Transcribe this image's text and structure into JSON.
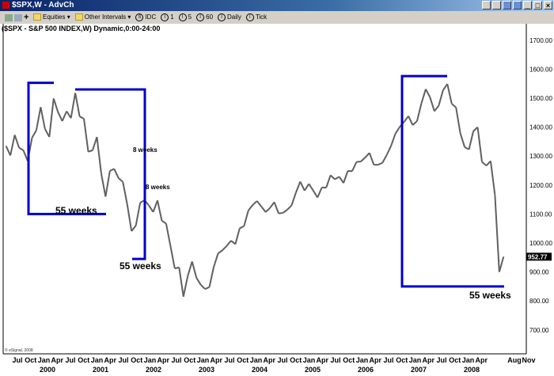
{
  "window": {
    "title": "$SPX,W - AdvCh",
    "controls": [
      "minimize",
      "maximize",
      "close"
    ]
  },
  "toolbar": {
    "equities_label": "Equities",
    "other_intervals_label": "Other Intervals",
    "intervals": [
      {
        "badge": "S",
        "label": "IDC"
      },
      {
        "badge": "I",
        "label": "1"
      },
      {
        "badge": "I",
        "label": "5"
      },
      {
        "badge": "I",
        "label": "60"
      },
      {
        "badge": "I",
        "label": "Daily"
      },
      {
        "badge": "I",
        "label": "Tick"
      }
    ]
  },
  "chart_data": {
    "type": "line",
    "title": "($SPX - S&P 500 INDEX,W) Dynamic,0:00-24:00",
    "xlabel": "",
    "ylabel": "",
    "ylim": [
      650,
      1750
    ],
    "yticks": [
      "700.00",
      "800.00",
      "900.00",
      "1000.00",
      "1100.00",
      "1200.00",
      "1300.00",
      "1400.00",
      "1500.00",
      "1600.00",
      "1700.00"
    ],
    "ytick_values": [
      700,
      800,
      900,
      1000,
      1100,
      1200,
      1300,
      1400,
      1500,
      1600,
      1700
    ],
    "last_price": "952.77",
    "grid": false,
    "xtick_labels": [
      "Jul",
      "Oct",
      "Jan",
      "Apr",
      "Jul",
      "Oct",
      "Jan",
      "Apr",
      "Jul",
      "Oct",
      "Jan",
      "Apr",
      "Jul",
      "Oct",
      "Jan",
      "Apr",
      "Jul",
      "Oct",
      "Jan",
      "Apr",
      "Jul",
      "Oct",
      "Jan",
      "Apr",
      "Jul",
      "Oct",
      "Jan",
      "Apr",
      "Jul",
      "Oct",
      "Jan",
      "Apr",
      "Jul",
      "Oct",
      "Jan",
      "Apr",
      "Aug",
      "Nov"
    ],
    "year_labels": [
      "2000",
      "2001",
      "2002",
      "2003",
      "2004",
      "2005",
      "2006",
      "2007",
      "2008"
    ],
    "series": [
      {
        "x": [
          "1999-04",
          "1999-05",
          "1999-06",
          "1999-07",
          "1999-08",
          "1999-09",
          "1999-10",
          "1999-11",
          "1999-12",
          "2000-01",
          "2000-02",
          "2000-03",
          "2000-04",
          "2000-05",
          "2000-06",
          "2000-07",
          "2000-08",
          "2000-09",
          "2000-10",
          "2000-11",
          "2000-12",
          "2001-01",
          "2001-02",
          "2001-03",
          "2001-04",
          "2001-05",
          "2001-06",
          "2001-07",
          "2001-08",
          "2001-09",
          "2001-10",
          "2001-11",
          "2001-12",
          "2002-01",
          "2002-02",
          "2002-03",
          "2002-04",
          "2002-05",
          "2002-06",
          "2002-07",
          "2002-08",
          "2002-09",
          "2002-10",
          "2002-11",
          "2002-12",
          "2003-01",
          "2003-02",
          "2003-03",
          "2003-04",
          "2003-05",
          "2003-06",
          "2003-07",
          "2003-08",
          "2003-09",
          "2003-10",
          "2003-11",
          "2003-12",
          "2004-01",
          "2004-02",
          "2004-03",
          "2004-04",
          "2004-05",
          "2004-06",
          "2004-07",
          "2004-08",
          "2004-09",
          "2004-10",
          "2004-11",
          "2004-12",
          "2005-01",
          "2005-02",
          "2005-03",
          "2005-04",
          "2005-05",
          "2005-06",
          "2005-07",
          "2005-08",
          "2005-09",
          "2005-10",
          "2005-11",
          "2005-12",
          "2006-01",
          "2006-02",
          "2006-03",
          "2006-04",
          "2006-05",
          "2006-06",
          "2006-07",
          "2006-08",
          "2006-09",
          "2006-10",
          "2006-11",
          "2006-12",
          "2007-01",
          "2007-02",
          "2007-03",
          "2007-04",
          "2007-05",
          "2007-06",
          "2007-07",
          "2007-08",
          "2007-09",
          "2007-10",
          "2007-11",
          "2007-12",
          "2008-01",
          "2008-02",
          "2008-03",
          "2008-04",
          "2008-05",
          "2008-06",
          "2008-07",
          "2008-08",
          "2008-09",
          "2008-10",
          "2008-11"
        ],
        "close": [
          1335,
          1302,
          1373,
          1329,
          1320,
          1283,
          1363,
          1389,
          1469,
          1394,
          1366,
          1499,
          1452,
          1421,
          1455,
          1431,
          1518,
          1437,
          1429,
          1315,
          1320,
          1366,
          1240,
          1160,
          1249,
          1256,
          1224,
          1211,
          1134,
          1041,
          1060,
          1139,
          1148,
          1130,
          1107,
          1147,
          1077,
          1067,
          990,
          912,
          916,
          815,
          886,
          936,
          880,
          856,
          841,
          848,
          917,
          964,
          975,
          990,
          1008,
          996,
          1051,
          1058,
          1112,
          1131,
          1145,
          1126,
          1107,
          1121,
          1141,
          1102,
          1104,
          1115,
          1130,
          1174,
          1212,
          1181,
          1204,
          1181,
          1157,
          1192,
          1191,
          1234,
          1220,
          1229,
          1207,
          1249,
          1248,
          1280,
          1281,
          1295,
          1311,
          1270,
          1270,
          1277,
          1304,
          1336,
          1378,
          1401,
          1418,
          1438,
          1407,
          1421,
          1482,
          1531,
          1503,
          1455,
          1474,
          1527,
          1549,
          1481,
          1468,
          1379,
          1331,
          1323,
          1386,
          1400,
          1280,
          1267,
          1283,
          1166,
          900,
          952.77
        ]
      }
    ],
    "annotations": {
      "boxes": [
        {
          "label": "55 weeks",
          "top": 1553,
          "bottom": 1100,
          "start": "2000-03",
          "end": "2001-04"
        },
        {
          "label": "55 weeks",
          "top": 1530,
          "bottom": 945,
          "start": "2000-09",
          "end": "2001-10"
        },
        {
          "label": "55 weeks",
          "top": 1576,
          "bottom": 850,
          "start": "2007-10",
          "end": "2008-11"
        }
      ],
      "notes": [
        "8 weeks",
        "8 weeks"
      ]
    },
    "colors": {
      "price": "#606060",
      "box": "#0000cc",
      "last_price_bg": "#000000"
    }
  },
  "copyright": "© eSignal, 2008"
}
